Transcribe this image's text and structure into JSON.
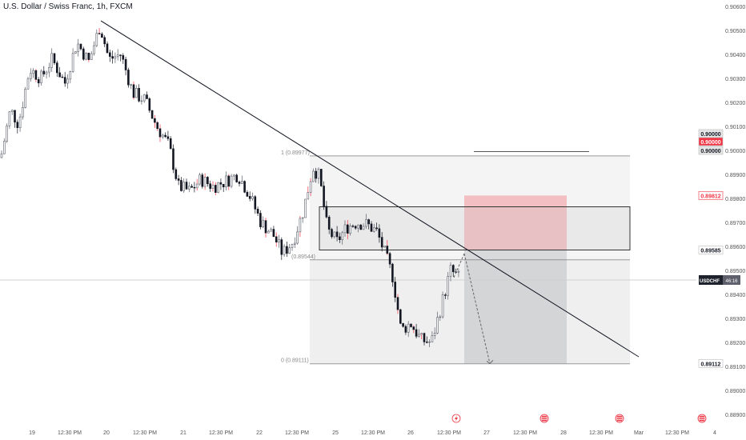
{
  "header": {
    "title": "U.S. Dollar / Swiss Franc, 1h, FXCM"
  },
  "chart_data": {
    "type": "candlestick",
    "symbol": "USDCHF",
    "timeframe": "1h",
    "price_axis": {
      "ticks": [
        "0.90600",
        "0.90500",
        "0.90400",
        "0.90300",
        "0.90200",
        "0.90100",
        "0.90000",
        "0.89900",
        "0.89800",
        "0.89700",
        "0.89600",
        "0.89500",
        "0.89400",
        "0.89300",
        "0.89200",
        "0.89100",
        "0.89000",
        "0.88900"
      ],
      "range": [
        0.8887,
        0.9062
      ]
    },
    "time_axis": {
      "ticks": [
        "19",
        "12:30 PM",
        "20",
        "12:30 PM",
        "21",
        "12:30 PM",
        "22",
        "12:30 PM",
        "25",
        "12:30 PM",
        "26",
        "12:30 PM",
        "27",
        "12:30 PM",
        "28",
        "12:30 PM",
        "Mar",
        "12:30 PM",
        "4"
      ]
    },
    "price_labels": [
      {
        "text": "0.90000",
        "role": "level-top",
        "color": "#e6e6e6",
        "text_color": "#131722"
      },
      {
        "text": "0.90000",
        "role": "level-red",
        "color": "#f23645",
        "text_color": "#ffffff"
      },
      {
        "text": "0.90000",
        "role": "level-bottom",
        "color": "#e6e6e6",
        "text_color": "#131722"
      },
      {
        "text": "0.89812",
        "role": "stop-loss",
        "color": "#ffffff",
        "text_color": "#f23645"
      },
      {
        "text": "0.89585",
        "role": "entry",
        "color": "#ffffff",
        "text_color": "#131722"
      },
      {
        "text": "0.89112",
        "role": "target",
        "color": "#ffffff",
        "text_color": "#131722"
      }
    ],
    "current_price": {
      "symbol": "USDCHF",
      "countdown": "46:16",
      "value": 0.8946
    },
    "fib_labels": [
      {
        "text": "1 (0.89977)",
        "price": 0.89977
      },
      {
        "text": "0 (0.89111)",
        "price": 0.89111
      },
      {
        "text": "(0.89544)",
        "price": 0.89544
      }
    ],
    "trendline": {
      "from": {
        "t": 126,
        "p": 0.9054
      },
      "to": {
        "t": 798,
        "p": 0.8914
      }
    },
    "resistance_zone": {
      "top": 0.89765,
      "bottom": 0.89585
    },
    "horizontal_line": {
      "price": 0.89995
    },
    "short_position": {
      "entry": 0.89585,
      "stop": 0.89812,
      "target": 0.89112
    },
    "projection": [
      {
        "t": 580,
        "p": 0.8957
      },
      {
        "t": 612,
        "p": 0.89112
      }
    ],
    "events_icons": [
      "bolt-icon",
      "us-flag-icon",
      "us-flag-icon",
      "us-flag-icon"
    ],
    "colors": {
      "up": "#5b5f6b",
      "down": "#131722",
      "red_wick": "#f23645",
      "trend": "#131722"
    }
  }
}
